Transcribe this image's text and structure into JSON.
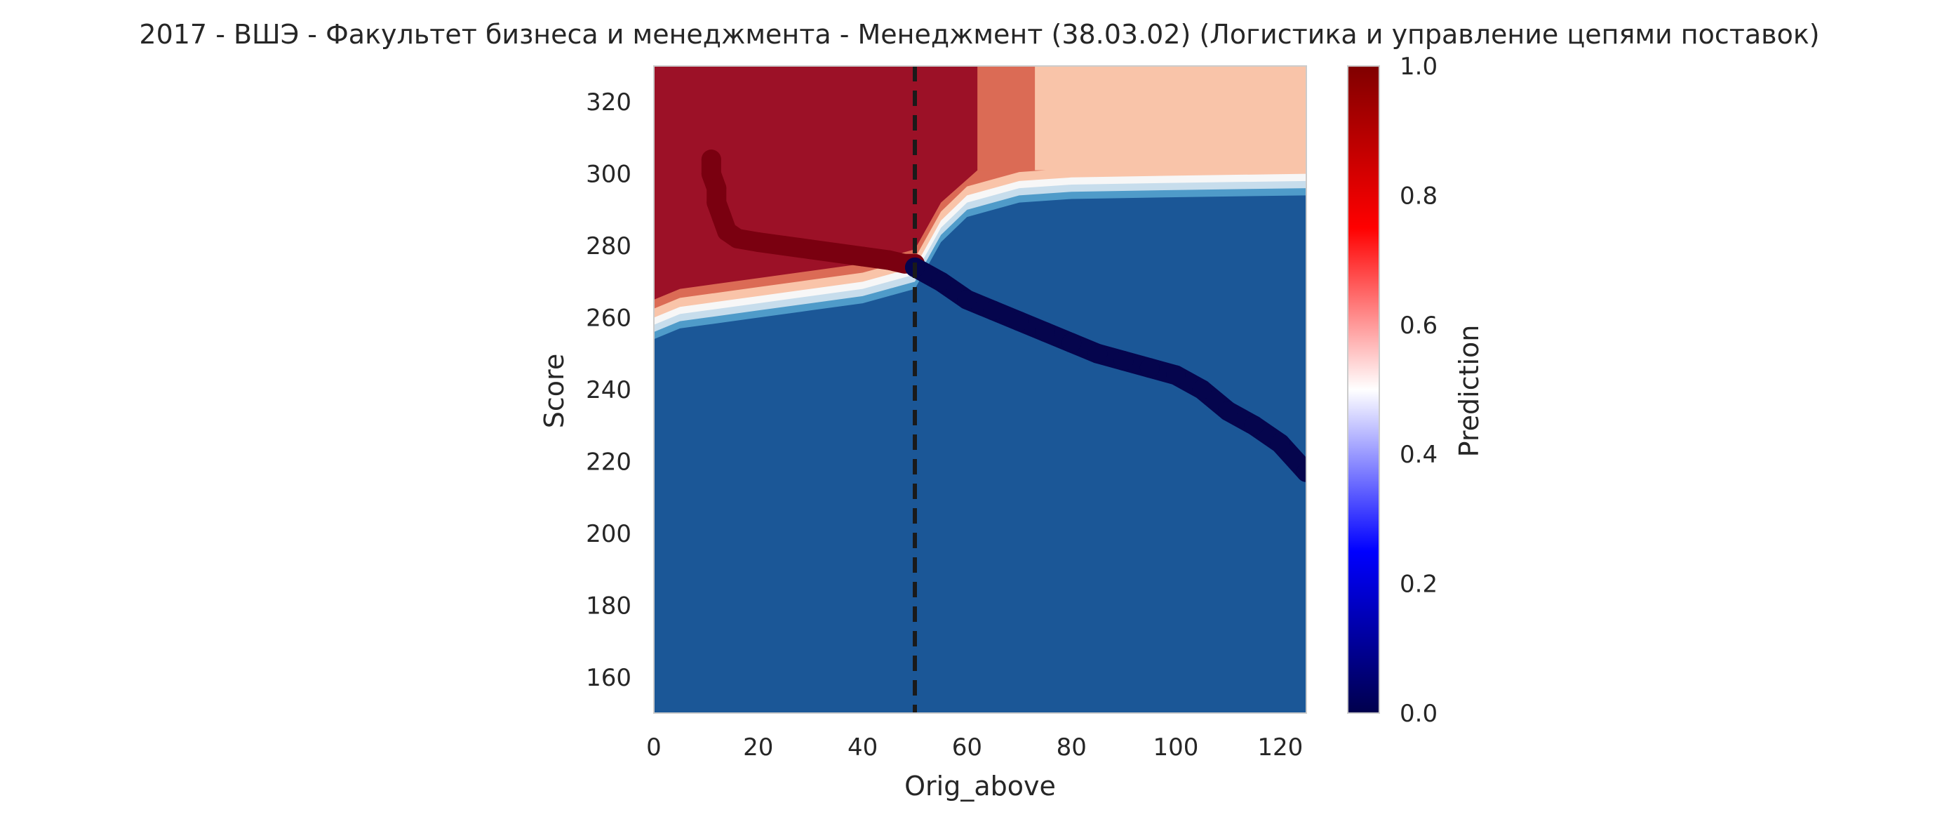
{
  "chart_data": {
    "type": "heatmap",
    "title": "2017 - ВШЭ - Факультет бизнеса и менеджмента - Менеджмент (38.03.02) (Логистика и управление цепями поставок)",
    "xlabel": "Orig_above",
    "ylabel": "Score",
    "xlim": [
      0,
      125
    ],
    "ylim": [
      150,
      330
    ],
    "x_ticks": [
      0,
      20,
      40,
      60,
      80,
      100,
      120
    ],
    "y_ticks": [
      160,
      180,
      200,
      220,
      240,
      260,
      280,
      300,
      320
    ],
    "grid": false,
    "threshold_line": {
      "x": 50,
      "style": "dashed",
      "color": "#1a1a1a"
    },
    "colorbar": {
      "label": "Prediction",
      "range": [
        0,
        1
      ],
      "ticks": [
        0.0,
        0.2,
        0.4,
        0.6,
        0.8,
        1.0
      ],
      "tick_labels": [
        "0.0",
        "0.2",
        "0.4",
        "0.6",
        "0.8",
        "1.0"
      ],
      "colormap": "seismic"
    },
    "regions": {
      "low_prediction_color": "#1b5797",
      "high_prediction_color": "#9c1127",
      "mid_high_color": "#db6b55",
      "light_high_color": "#f9c4a9",
      "neutral_color": "#f7f7f7",
      "light_low_color": "#c7ddec",
      "mid_low_color": "#4f9bc9",
      "boundary_left": [
        [
          0,
          258
        ],
        [
          5,
          261
        ],
        [
          10,
          262
        ],
        [
          20,
          264
        ],
        [
          30,
          266
        ],
        [
          40,
          268
        ],
        [
          45,
          270
        ],
        [
          50,
          272
        ],
        [
          55,
          285
        ],
        [
          60,
          292
        ],
        [
          70,
          296
        ],
        [
          80,
          297
        ],
        [
          100,
          297.5
        ],
        [
          125,
          298
        ]
      ],
      "upper_band_split_x": [
        62,
        73
      ]
    },
    "series": [
      {
        "color": "#7a0010",
        "points": [
          [
            11,
            304
          ],
          [
            11,
            300
          ],
          [
            12,
            296
          ],
          [
            12,
            292
          ],
          [
            13,
            288
          ],
          [
            14,
            284
          ],
          [
            16,
            282
          ],
          [
            20,
            281
          ],
          [
            25,
            280
          ],
          [
            30,
            279
          ],
          [
            35,
            278
          ],
          [
            40,
            277
          ],
          [
            45,
            276
          ],
          [
            48,
            275
          ],
          [
            50,
            275
          ]
        ]
      },
      {
        "color": "#05054d",
        "points": [
          [
            50,
            274
          ],
          [
            55,
            270
          ],
          [
            60,
            265
          ],
          [
            65,
            262
          ],
          [
            70,
            259
          ],
          [
            75,
            256
          ],
          [
            80,
            253
          ],
          [
            85,
            250
          ],
          [
            90,
            248
          ],
          [
            95,
            246
          ],
          [
            100,
            244
          ],
          [
            105,
            240
          ],
          [
            110,
            234
          ],
          [
            115,
            230
          ],
          [
            120,
            225
          ],
          [
            125,
            217
          ]
        ]
      }
    ]
  }
}
